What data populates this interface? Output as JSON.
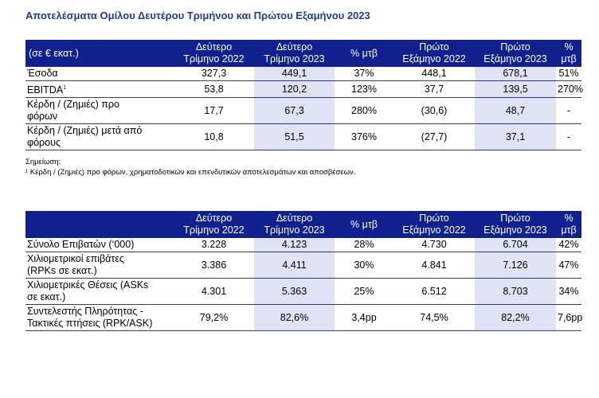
{
  "title": "Αποτελέσματα Ομίλου Δευτέρου Τριμήνου και Πρώτου Εξαμήνου 2023",
  "table1": {
    "headers": [
      [
        "(σε € εκατ.)"
      ],
      [
        "Δεύτερο",
        "Τρίμηνο 2022"
      ],
      [
        "Δεύτερο",
        "Τρίμηνο 2023"
      ],
      [
        "% μτβ"
      ],
      [
        "Πρώτο",
        "Εξάμηνο 2022"
      ],
      [
        "Πρώτο",
        "Εξάμηνο 2023"
      ],
      [
        "%",
        "μτβ"
      ]
    ],
    "rows": [
      {
        "label": [
          "Έσοδα"
        ],
        "values": [
          "327,3",
          "449,1",
          "37%",
          "448,1",
          "678,1",
          "51%"
        ]
      },
      {
        "label": [
          "EBITDA"
        ],
        "sup": "1",
        "values": [
          "53,8",
          "120,2",
          "123%",
          "37,7",
          "139,5",
          "270%"
        ]
      },
      {
        "label": [
          "Κέρδη / (Ζημιές) προ",
          "φόρων"
        ],
        "values": [
          "17,7",
          "67,3",
          "280%",
          "(30,6)",
          "48,7",
          "-"
        ]
      },
      {
        "label": [
          "Κέρδη / (Ζημιές) μετά από",
          "φόρους"
        ],
        "values": [
          "10,8",
          "51,5",
          "376%",
          "(27,7)",
          "37,1",
          "-"
        ]
      }
    ]
  },
  "notes": {
    "heading": "Σημείωση:",
    "footnote": "¹ Κέρδη / (Ζημιές) προ φόρων, χρηματοδοτικών και επενδυτικών αποτελεσμάτων και αποσβέσεων."
  },
  "table2": {
    "headers": [
      [
        ""
      ],
      [
        "Δεύτερο",
        "Τρίμηνο 2022"
      ],
      [
        "Δεύτερο",
        "Τρίμηνο 2023"
      ],
      [
        "% μτβ"
      ],
      [
        "Πρώτο",
        "Εξάμηνο 2022"
      ],
      [
        "Πρώτο",
        "Εξάμηνο 2023"
      ],
      [
        "% μτβ"
      ]
    ],
    "rows": [
      {
        "label": [
          "Σύνολο Επιβατών (‘000)"
        ],
        "values": [
          "3.228",
          "4.123",
          "28%",
          "4.730",
          "6.704",
          "42%"
        ]
      },
      {
        "label": [
          "Χιλιομετρικοί επιβάτες",
          "(RPKs σε εκατ.)"
        ],
        "values": [
          "3.386",
          "4.411",
          "30%",
          "4.841",
          "7.126",
          "47%"
        ]
      },
      {
        "label": [
          "Χιλιομετρικές Θέσεις (ASKs",
          "σε εκατ.)"
        ],
        "values": [
          "4.301",
          "5.363",
          "25%",
          "6.512",
          "8.703",
          "34%"
        ]
      },
      {
        "label": [
          "Συντελεστής Πληρότητας -",
          "Τακτικές πτήσεις (RPK/ASK)"
        ],
        "values": [
          "79,2%",
          "82,6%",
          "3,4pp",
          "74,5%",
          "82,2%",
          "7,6pp"
        ]
      }
    ]
  }
}
